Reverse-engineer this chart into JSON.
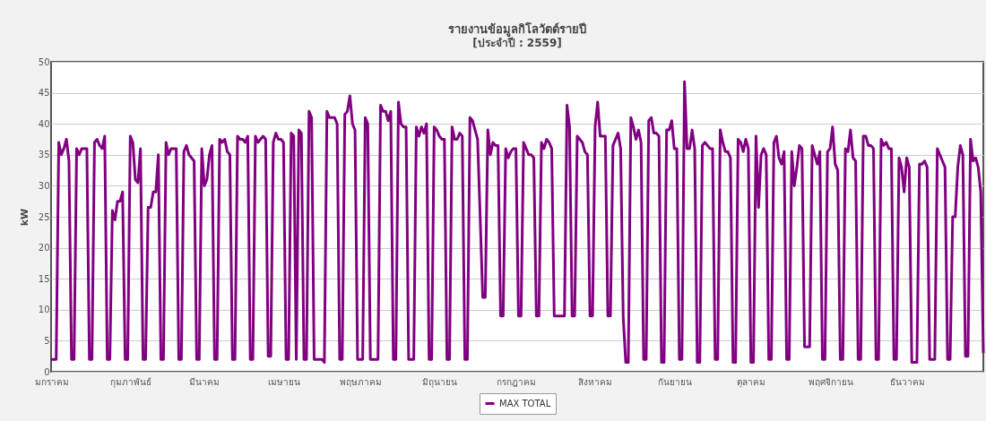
{
  "chart_data": {
    "type": "line",
    "title": "รายงานข้อมูลกิโลวัตต์รายปี",
    "subtitle": "[ประจำปี : 2559]",
    "ylabel": "kW",
    "ylim": [
      0,
      50
    ],
    "yticks": [
      0,
      5,
      10,
      15,
      20,
      25,
      30,
      35,
      40,
      45,
      50
    ],
    "grid": "y",
    "legend": "bottom",
    "categories": [
      "มกราคม",
      null,
      null,
      null,
      null,
      null,
      null,
      null,
      null,
      null,
      null,
      null,
      null,
      null,
      null,
      null,
      null,
      null,
      null,
      null,
      null,
      null,
      null,
      null,
      null,
      null,
      null,
      null,
      null,
      null,
      null,
      "กุมภาพันธ์",
      null,
      null,
      null,
      null,
      null,
      null,
      null,
      null,
      null,
      null,
      null,
      null,
      null,
      null,
      null,
      null,
      null,
      null,
      null,
      null,
      null,
      null,
      null,
      null,
      null,
      null,
      null,
      null,
      "มีนาคม",
      null,
      null,
      null,
      null,
      null,
      null,
      null,
      null,
      null,
      null,
      null,
      null,
      null,
      null,
      null,
      null,
      null,
      null,
      null,
      null,
      null,
      null,
      null,
      null,
      null,
      null,
      null,
      null,
      null,
      null,
      "เมษายน",
      null,
      null,
      null,
      null,
      null,
      null,
      null,
      null,
      null,
      null,
      null,
      null,
      null,
      null,
      null,
      null,
      null,
      null,
      null,
      null,
      null,
      null,
      null,
      null,
      null,
      null,
      null,
      null,
      null,
      "พฤษภาคม",
      null,
      null,
      null,
      null,
      null,
      null,
      null,
      null,
      null,
      null,
      null,
      null,
      null,
      null,
      null,
      null,
      null,
      null,
      null,
      null,
      null,
      null,
      null,
      null,
      null,
      null,
      null,
      null,
      null,
      null,
      "มิถุนายน",
      null,
      null,
      null,
      null,
      null,
      null,
      null,
      null,
      null,
      null,
      null,
      null,
      null,
      null,
      null,
      null,
      null,
      null,
      null,
      null,
      null,
      null,
      null,
      null,
      null,
      null,
      null,
      null,
      null,
      "กรกฎาคม",
      null,
      null,
      null,
      null,
      null,
      null,
      null,
      null,
      null,
      null,
      null,
      null,
      null,
      null,
      null,
      null,
      null,
      null,
      null,
      null,
      null,
      null,
      null,
      null,
      null,
      null,
      null,
      null,
      null,
      null,
      "สิงหาคม",
      null,
      null,
      null,
      null,
      null,
      null,
      null,
      null,
      null,
      null,
      null,
      null,
      null,
      null,
      null,
      null,
      null,
      null,
      null,
      null,
      null,
      null,
      null,
      null,
      null,
      null,
      null,
      null,
      null,
      null,
      "กันยายน",
      null,
      null,
      null,
      null,
      null,
      null,
      null,
      null,
      null,
      null,
      null,
      null,
      null,
      null,
      null,
      null,
      null,
      null,
      null,
      null,
      null,
      null,
      null,
      null,
      null,
      null,
      null,
      null,
      null,
      "ตุลาคม",
      null,
      null,
      null,
      null,
      null,
      null,
      null,
      null,
      null,
      null,
      null,
      null,
      null,
      null,
      null,
      null,
      null,
      null,
      null,
      null,
      null,
      null,
      null,
      null,
      null,
      null,
      null,
      null,
      null,
      null,
      "พฤศจิกายน",
      null,
      null,
      null,
      null,
      null,
      null,
      null,
      null,
      null,
      null,
      null,
      null,
      null,
      null,
      null,
      null,
      null,
      null,
      null,
      null,
      null,
      null,
      null,
      null,
      null,
      null,
      null,
      null,
      null,
      "ธันวาคม",
      null,
      null,
      null,
      null,
      null,
      null,
      null,
      null,
      null,
      null,
      null,
      null,
      null,
      null,
      null,
      null,
      null,
      null,
      null,
      null,
      null,
      null,
      null,
      null,
      null,
      null,
      null,
      null,
      null,
      null
    ],
    "series": [
      {
        "name": "MAX TOTAL",
        "color": "#800080",
        "values": [
          2,
          2,
          2,
          37,
          35,
          36,
          37.5,
          34,
          2,
          2,
          36,
          35,
          36,
          36,
          36,
          2,
          2,
          37,
          37.5,
          36.5,
          36,
          38,
          2,
          2,
          26,
          24.5,
          27.5,
          27.5,
          29,
          2,
          2,
          38,
          37,
          31,
          30.5,
          36,
          2,
          2,
          26.5,
          26.5,
          29,
          29,
          35,
          2,
          2,
          37,
          35,
          36,
          36,
          36,
          2,
          2,
          35.5,
          36.5,
          35,
          34.5,
          34,
          2,
          2,
          36,
          30,
          31,
          35,
          36.5,
          2,
          2,
          37.5,
          37,
          37.5,
          35.5,
          35,
          2,
          2,
          38,
          37.5,
          37.5,
          37,
          38,
          2,
          2,
          38,
          37,
          37.5,
          38,
          37.5,
          2.5,
          2.5,
          37,
          38.5,
          37.5,
          37.5,
          37,
          2,
          2,
          38.5,
          38,
          2,
          39,
          38.5,
          2,
          2,
          42,
          41,
          2,
          2,
          2,
          2,
          1.5,
          42,
          41,
          41,
          41,
          40,
          2,
          2,
          41.5,
          42,
          44.5,
          40,
          39,
          2,
          2,
          2,
          41,
          40,
          2,
          2,
          2,
          2,
          43,
          42,
          42,
          40.5,
          42,
          2,
          2,
          43.5,
          40,
          39.5,
          39.5,
          2,
          2,
          2,
          39.5,
          38,
          39.5,
          38.5,
          40,
          2,
          2,
          39.5,
          39,
          38,
          37.5,
          37.5,
          2,
          2,
          39.5,
          37.5,
          37.5,
          38.5,
          38,
          2,
          2,
          41,
          40.5,
          39,
          37.5,
          25,
          12,
          12,
          39,
          35,
          37,
          36.5,
          36.5,
          9,
          9,
          36,
          34.5,
          35.5,
          36,
          36,
          9,
          9,
          37,
          36,
          35,
          35,
          34.5,
          9,
          9,
          37,
          36,
          37.5,
          37,
          36,
          9,
          9,
          9,
          9,
          9,
          43,
          39.5,
          9,
          9,
          38,
          37.5,
          37,
          35.5,
          35,
          9,
          9,
          39.5,
          43.5,
          38,
          38,
          38,
          9,
          9,
          36.5,
          37.5,
          38.5,
          36,
          9,
          1.5,
          1.5,
          41,
          39.5,
          37.5,
          39,
          37,
          2,
          2,
          40.5,
          41,
          38.5,
          38.5,
          38,
          1.5,
          1.5,
          39,
          39,
          40.5,
          36,
          36,
          2,
          2,
          46.8,
          36,
          36,
          39,
          36,
          1.5,
          1.5,
          36.5,
          37,
          36.5,
          36,
          36,
          2,
          2,
          39,
          37,
          35.5,
          35.5,
          34.5,
          1.5,
          1.5,
          37.5,
          37,
          35.5,
          37.5,
          36,
          1.5,
          1.5,
          38,
          26.5,
          35,
          36,
          35,
          2,
          2,
          37,
          38,
          34.5,
          33.5,
          35.5,
          2,
          2,
          35.5,
          30,
          33,
          36.5,
          36,
          4,
          4,
          4,
          36.5,
          35,
          33.5,
          35.5,
          2,
          2,
          35.5,
          36,
          39.5,
          33.5,
          32.5,
          2,
          2,
          36,
          35.5,
          39,
          34.5,
          34,
          2,
          2,
          38,
          38,
          36.5,
          36.5,
          36,
          2,
          2,
          37.5,
          36.5,
          37,
          36,
          36,
          2,
          2,
          34.5,
          33,
          29,
          34.5,
          33,
          1.5,
          1.5,
          1.5,
          33.5,
          33.5,
          34,
          33,
          2,
          2,
          2,
          36,
          35,
          34,
          33,
          2,
          2,
          25,
          25,
          33,
          36.5,
          35,
          2.5,
          2.5,
          37.5,
          34,
          34.5,
          33,
          29,
          3
        ]
      }
    ]
  }
}
